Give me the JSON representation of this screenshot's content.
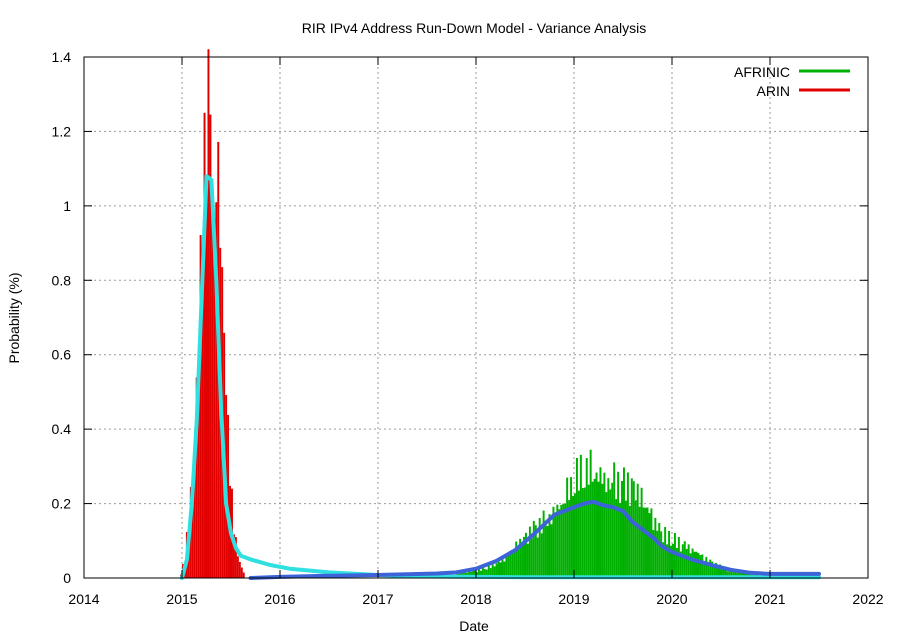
{
  "chart_data": {
    "type": "bar",
    "title": "RIR IPv4 Address Run-Down Model - Variance Analysis",
    "xlabel": "Date",
    "ylabel": "Probability (%)",
    "xlim": [
      2014,
      2022
    ],
    "ylim": [
      0,
      1.4
    ],
    "x_ticks": [
      "2014",
      "2015",
      "2016",
      "2017",
      "2018",
      "2019",
      "2020",
      "2021",
      "2022"
    ],
    "y_ticks": [
      "0",
      "0.2",
      "0.4",
      "0.6",
      "0.8",
      "1",
      "1.2",
      "1.4"
    ],
    "grid": true,
    "legend_position": "top-right",
    "legend": [
      {
        "label": "AFRINIC",
        "color": "#00b000"
      },
      {
        "label": "ARIN",
        "color": "#e00000"
      }
    ],
    "histogram_bin_width_years": 0.02,
    "series": [
      {
        "name": "AFRINIC",
        "kind": "histogram",
        "color": "#00b000",
        "x": [
          2017.8,
          2017.9,
          2018.0,
          2018.1,
          2018.2,
          2018.3,
          2018.4,
          2018.5,
          2018.6,
          2018.7,
          2018.8,
          2018.9,
          2019.0,
          2019.1,
          2019.2,
          2019.3,
          2019.4,
          2019.5,
          2019.6,
          2019.7,
          2019.8,
          2019.9,
          2020.0,
          2020.1,
          2020.2,
          2020.3,
          2020.4,
          2020.5,
          2020.6,
          2020.7,
          2020.8,
          2020.9,
          2021.0
        ],
        "values": [
          0.01,
          0.015,
          0.02,
          0.03,
          0.045,
          0.06,
          0.08,
          0.1,
          0.13,
          0.16,
          0.19,
          0.22,
          0.25,
          0.27,
          0.29,
          0.28,
          0.27,
          0.24,
          0.22,
          0.19,
          0.16,
          0.13,
          0.11,
          0.09,
          0.07,
          0.055,
          0.04,
          0.03,
          0.02,
          0.015,
          0.01,
          0.006,
          0.004
        ]
      },
      {
        "name": "ARIN",
        "kind": "histogram",
        "color": "#e00000",
        "x": [
          2014.98,
          2015.02,
          2015.06,
          2015.1,
          2015.14,
          2015.18,
          2015.22,
          2015.26,
          2015.28,
          2015.3,
          2015.32,
          2015.34,
          2015.38,
          2015.42,
          2015.46,
          2015.5,
          2015.54,
          2015.58,
          2015.62
        ],
        "values": [
          0.01,
          0.05,
          0.15,
          0.3,
          0.5,
          0.75,
          1.0,
          1.28,
          1.38,
          1.3,
          1.22,
          1.1,
          0.85,
          0.6,
          0.4,
          0.22,
          0.1,
          0.04,
          0.015
        ]
      },
      {
        "name": "ARIN smoothed",
        "kind": "line",
        "color": "#30e0e0",
        "x": [
          2015.0,
          2015.05,
          2015.1,
          2015.15,
          2015.2,
          2015.25,
          2015.3,
          2015.35,
          2015.4,
          2015.45,
          2015.5,
          2015.55,
          2015.6,
          2015.7,
          2015.9,
          2016.1,
          2016.5,
          2017.0,
          2017.5,
          2018.0,
          2018.5,
          2019.0,
          2019.5,
          2020.0,
          2020.5,
          2021.0,
          2021.5
        ],
        "values": [
          0.0,
          0.05,
          0.2,
          0.42,
          0.75,
          1.08,
          1.07,
          0.8,
          0.45,
          0.2,
          0.12,
          0.08,
          0.06,
          0.05,
          0.035,
          0.025,
          0.015,
          0.008,
          0.004,
          0.003,
          0.002,
          0.002,
          0.002,
          0.002,
          0.002,
          0.002,
          0.002
        ]
      },
      {
        "name": "AFRINIC smoothed",
        "kind": "line",
        "color": "#3c64d8",
        "x": [
          2015.7,
          2016.0,
          2016.5,
          2017.0,
          2017.3,
          2017.6,
          2017.8,
          2018.0,
          2018.2,
          2018.4,
          2018.6,
          2018.8,
          2019.0,
          2019.1,
          2019.2,
          2019.3,
          2019.4,
          2019.5,
          2019.6,
          2019.7,
          2019.8,
          2019.9,
          2020.0,
          2020.2,
          2020.4,
          2020.6,
          2020.8,
          2021.0,
          2021.2,
          2021.5
        ],
        "values": [
          0.0,
          0.003,
          0.006,
          0.008,
          0.01,
          0.012,
          0.015,
          0.025,
          0.045,
          0.075,
          0.12,
          0.17,
          0.19,
          0.2,
          0.205,
          0.195,
          0.19,
          0.18,
          0.15,
          0.13,
          0.11,
          0.085,
          0.07,
          0.05,
          0.035,
          0.022,
          0.014,
          0.011,
          0.011,
          0.011
        ]
      }
    ]
  }
}
